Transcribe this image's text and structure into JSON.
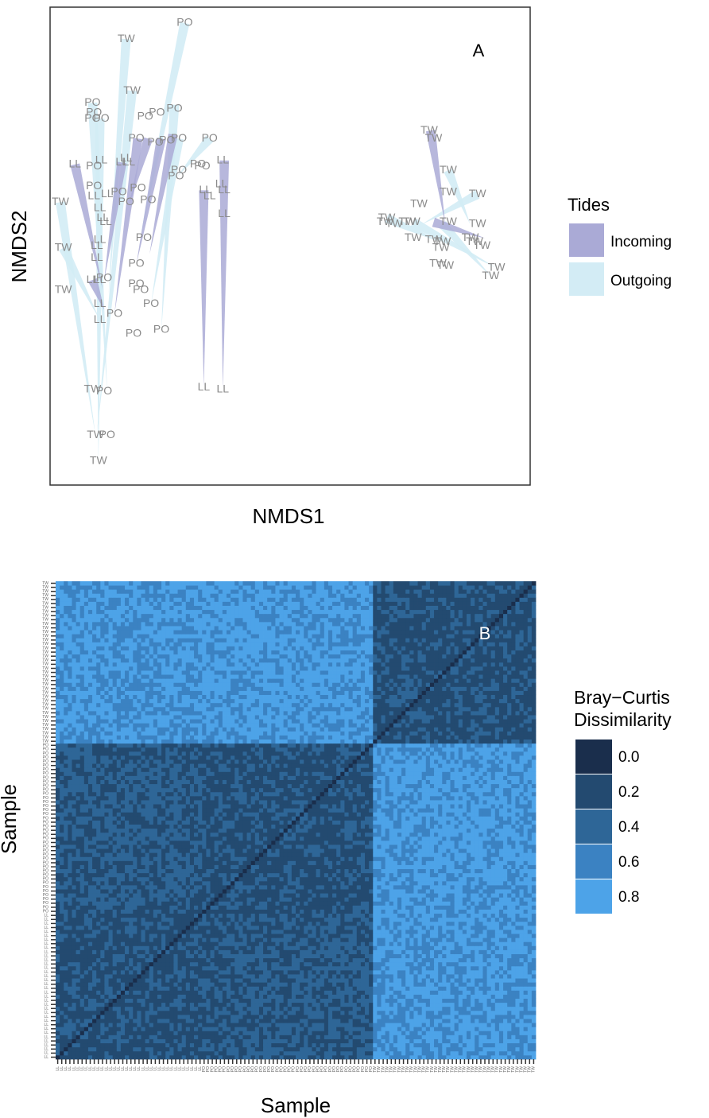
{
  "chart_data": [
    {
      "type": "scatter",
      "panel_label": "A",
      "xlabel": "NMDS1",
      "ylabel": "NMDS2",
      "legend": {
        "title": "Tides",
        "position": "right",
        "entries": [
          {
            "name": "Incoming",
            "color": "#aaaad6"
          },
          {
            "name": "Outgoing",
            "color": "#d3ecf5"
          }
        ]
      },
      "points": [
        {
          "label": "PO",
          "x": -0.7,
          "y": 0.96
        },
        {
          "label": "TW",
          "x": -1.1,
          "y": 0.88
        },
        {
          "label": "TW",
          "x": -1.06,
          "y": 0.62
        },
        {
          "label": "PO",
          "x": -1.33,
          "y": 0.56
        },
        {
          "label": "PO",
          "x": -1.32,
          "y": 0.51
        },
        {
          "label": "PO",
          "x": -1.33,
          "y": 0.48
        },
        {
          "label": "PO",
          "x": -1.27,
          "y": 0.48
        },
        {
          "label": "PO",
          "x": -0.97,
          "y": 0.49
        },
        {
          "label": "PO",
          "x": -0.89,
          "y": 0.51
        },
        {
          "label": "PO",
          "x": -0.77,
          "y": 0.53
        },
        {
          "label": "PO",
          "x": -1.03,
          "y": 0.38
        },
        {
          "label": "PO",
          "x": -0.9,
          "y": 0.36
        },
        {
          "label": "PO",
          "x": -0.82,
          "y": 0.37
        },
        {
          "label": "PO",
          "x": -0.74,
          "y": 0.38
        },
        {
          "label": "PO",
          "x": -0.53,
          "y": 0.38
        },
        {
          "label": "LL",
          "x": -1.45,
          "y": 0.25
        },
        {
          "label": "LL",
          "x": -1.27,
          "y": 0.27
        },
        {
          "label": "PO",
          "x": -1.32,
          "y": 0.24
        },
        {
          "label": "LL",
          "x": -1.13,
          "y": 0.26
        },
        {
          "label": "LL",
          "x": -1.08,
          "y": 0.26
        },
        {
          "label": "LL",
          "x": -1.1,
          "y": 0.28
        },
        {
          "label": "PO",
          "x": -0.74,
          "y": 0.22
        },
        {
          "label": "PO",
          "x": -0.76,
          "y": 0.19
        },
        {
          "label": "PO",
          "x": -0.61,
          "y": 0.25
        },
        {
          "label": "PO",
          "x": -0.58,
          "y": 0.24
        },
        {
          "label": "LL",
          "x": -0.44,
          "y": 0.27
        },
        {
          "label": "PO",
          "x": -1.32,
          "y": 0.14
        },
        {
          "label": "LL",
          "x": -1.32,
          "y": 0.09
        },
        {
          "label": "LL",
          "x": -1.23,
          "y": 0.1
        },
        {
          "label": "PO",
          "x": -1.15,
          "y": 0.11
        },
        {
          "label": "PO",
          "x": -1.02,
          "y": 0.13
        },
        {
          "label": "LL",
          "x": -0.56,
          "y": 0.12
        },
        {
          "label": "LL",
          "x": -0.53,
          "y": 0.09
        },
        {
          "label": "LL",
          "x": -0.43,
          "y": 0.12
        },
        {
          "label": "LL",
          "x": -0.45,
          "y": 0.15
        },
        {
          "label": "TW",
          "x": -1.55,
          "y": 0.06
        },
        {
          "label": "LL",
          "x": -1.28,
          "y": 0.03
        },
        {
          "label": "PO",
          "x": -1.1,
          "y": 0.06
        },
        {
          "label": "PO",
          "x": -0.95,
          "y": 0.07
        },
        {
          "label": "LL",
          "x": -1.26,
          "y": -0.02
        },
        {
          "label": "LL",
          "x": -1.24,
          "y": -0.04
        },
        {
          "label": "LL",
          "x": -0.43,
          "y": 0.0
        },
        {
          "label": "TW",
          "x": -1.53,
          "y": -0.17
        },
        {
          "label": "LL",
          "x": -1.28,
          "y": -0.13
        },
        {
          "label": "LL",
          "x": -1.3,
          "y": -0.16
        },
        {
          "label": "PO",
          "x": -0.98,
          "y": -0.12
        },
        {
          "label": "LL",
          "x": -1.3,
          "y": -0.22
        },
        {
          "label": "PO",
          "x": -1.03,
          "y": -0.25
        },
        {
          "label": "TW",
          "x": -1.53,
          "y": -0.38
        },
        {
          "label": "LL",
          "x": -1.33,
          "y": -0.33
        },
        {
          "label": "LL",
          "x": -1.28,
          "y": -0.33
        },
        {
          "label": "PO",
          "x": -1.25,
          "y": -0.32
        },
        {
          "label": "PO",
          "x": -1.03,
          "y": -0.35
        },
        {
          "label": "PO",
          "x": -1.0,
          "y": -0.38
        },
        {
          "label": "LL",
          "x": -1.28,
          "y": -0.45
        },
        {
          "label": "PO",
          "x": -1.18,
          "y": -0.5
        },
        {
          "label": "LL",
          "x": -1.28,
          "y": -0.53
        },
        {
          "label": "PO",
          "x": -0.93,
          "y": -0.45
        },
        {
          "label": "PO",
          "x": -1.05,
          "y": -0.6
        },
        {
          "label": "PO",
          "x": -0.86,
          "y": -0.58
        },
        {
          "label": "TW",
          "x": -1.33,
          "y": -0.88
        },
        {
          "label": "PO",
          "x": -1.25,
          "y": -0.89
        },
        {
          "label": "TW",
          "x": -1.31,
          "y": -1.11
        },
        {
          "label": "PO",
          "x": -1.23,
          "y": -1.11
        },
        {
          "label": "TW",
          "x": -1.29,
          "y": -1.24
        },
        {
          "label": "LL",
          "x": -0.57,
          "y": -0.87
        },
        {
          "label": "LL",
          "x": -0.44,
          "y": -0.88
        },
        {
          "label": "TW",
          "x": 0.97,
          "y": 0.42
        },
        {
          "label": "TW",
          "x": 1.0,
          "y": 0.38
        },
        {
          "label": "TW",
          "x": 1.1,
          "y": 0.22
        },
        {
          "label": "TW",
          "x": 1.1,
          "y": 0.11
        },
        {
          "label": "TW",
          "x": 1.3,
          "y": 0.1
        },
        {
          "label": "TW",
          "x": 0.9,
          "y": 0.05
        },
        {
          "label": "TW",
          "x": 0.68,
          "y": -0.02
        },
        {
          "label": "TW",
          "x": 0.67,
          "y": -0.04
        },
        {
          "label": "TW",
          "x": 0.73,
          "y": -0.05
        },
        {
          "label": "TW",
          "x": 0.82,
          "y": -0.04
        },
        {
          "label": "TW",
          "x": 0.85,
          "y": -0.04
        },
        {
          "label": "TW",
          "x": 1.1,
          "y": -0.04
        },
        {
          "label": "TW",
          "x": 1.3,
          "y": -0.05
        },
        {
          "label": "TW",
          "x": 0.86,
          "y": -0.12
        },
        {
          "label": "TW",
          "x": 1.0,
          "y": -0.13
        },
        {
          "label": "TW",
          "x": 1.06,
          "y": -0.14
        },
        {
          "label": "TW",
          "x": 1.05,
          "y": -0.17
        },
        {
          "label": "TW",
          "x": 1.25,
          "y": -0.12
        },
        {
          "label": "TW",
          "x": 1.28,
          "y": -0.14
        },
        {
          "label": "TW",
          "x": 1.33,
          "y": -0.16
        },
        {
          "label": "TW",
          "x": 1.03,
          "y": -0.25
        },
        {
          "label": "TW",
          "x": 1.08,
          "y": -0.26
        },
        {
          "label": "TW",
          "x": 1.43,
          "y": -0.27
        },
        {
          "label": "TW",
          "x": 1.39,
          "y": -0.31
        }
      ],
      "incoming_segments": [
        [
          [
            -1.45,
            0.25
          ],
          [
            -1.26,
            -0.38
          ]
        ],
        [
          [
            -1.33,
            -0.33
          ],
          [
            -1.25,
            -0.48
          ]
        ],
        [
          [
            -1.13,
            0.26
          ],
          [
            -1.25,
            -0.33
          ]
        ],
        [
          [
            -1.02,
            0.38
          ],
          [
            -1.18,
            -0.5
          ]
        ],
        [
          [
            -0.95,
            0.38
          ],
          [
            -1.08,
            0.05
          ]
        ],
        [
          [
            -0.86,
            0.38
          ],
          [
            -1.03,
            -0.25
          ]
        ],
        [
          [
            -0.78,
            0.4
          ],
          [
            -0.94,
            -0.2
          ]
        ],
        [
          [
            -0.57,
            0.12
          ],
          [
            -0.57,
            -0.87
          ]
        ],
        [
          [
            -0.43,
            0.27
          ],
          [
            -0.44,
            -0.88
          ]
        ],
        [
          [
            0.98,
            0.42
          ],
          [
            1.08,
            -0.05
          ]
        ],
        [
          [
            1.0,
            -0.04
          ],
          [
            1.35,
            -0.12
          ]
        ]
      ],
      "outgoing_segments": [
        [
          [
            -0.7,
            0.96
          ],
          [
            -1.0,
            -0.1
          ]
        ],
        [
          [
            -1.1,
            0.88
          ],
          [
            -1.22,
            -0.4
          ]
        ],
        [
          [
            -1.06,
            0.62
          ],
          [
            -1.3,
            -1.1
          ]
        ],
        [
          [
            -1.33,
            0.56
          ],
          [
            -1.23,
            -0.89
          ]
        ],
        [
          [
            -1.28,
            0.48
          ],
          [
            -1.29,
            -1.24
          ]
        ],
        [
          [
            -1.55,
            0.06
          ],
          [
            -1.31,
            -1.11
          ]
        ],
        [
          [
            -1.53,
            -0.17
          ],
          [
            -1.28,
            -0.53
          ]
        ],
        [
          [
            -0.77,
            0.55
          ],
          [
            -0.86,
            -0.58
          ]
        ],
        [
          [
            -0.74,
            0.38
          ],
          [
            -0.93,
            -0.45
          ]
        ],
        [
          [
            -0.53,
            0.38
          ],
          [
            -0.75,
            0.19
          ]
        ],
        [
          [
            1.1,
            0.22
          ],
          [
            1.25,
            -0.05
          ]
        ],
        [
          [
            1.3,
            0.1
          ],
          [
            0.92,
            -0.05
          ]
        ],
        [
          [
            0.86,
            -0.04
          ],
          [
            1.43,
            -0.27
          ]
        ],
        [
          [
            0.68,
            -0.02
          ],
          [
            1.05,
            -0.14
          ]
        ],
        [
          [
            1.06,
            -0.05
          ],
          [
            1.39,
            -0.31
          ]
        ]
      ],
      "xlim": [
        -1.62,
        1.66
      ],
      "ylim": [
        -1.36,
        1.04
      ]
    },
    {
      "type": "heatmap",
      "panel_label": "B",
      "xlabel": "Sample",
      "ylabel": "Sample",
      "legend": {
        "title_lines": [
          "Bray−Curtis",
          "Dissimilarity"
        ],
        "position": "right",
        "entries": [
          {
            "label": "0.0",
            "color": "#1a2e4c"
          },
          {
            "label": "0.2",
            "color": "#234a70"
          },
          {
            "label": "0.4",
            "color": "#2e6697"
          },
          {
            "label": "0.6",
            "color": "#3b82c2"
          },
          {
            "label": "0.8",
            "color": "#4da3e8"
          }
        ]
      },
      "groups": [
        {
          "tick_label": "LL",
          "count": 36
        },
        {
          "tick_label": "PO",
          "count": 42
        },
        {
          "tick_label": "TW",
          "count": 40
        }
      ],
      "block_values": {
        "LL-LL": 0.3,
        "LL-PO": 0.35,
        "LL-TW": 0.8,
        "PO-PO": 0.3,
        "PO-TW": 0.82,
        "TW-TW": 0.3
      },
      "color_range": [
        0.0,
        0.9
      ]
    }
  ]
}
